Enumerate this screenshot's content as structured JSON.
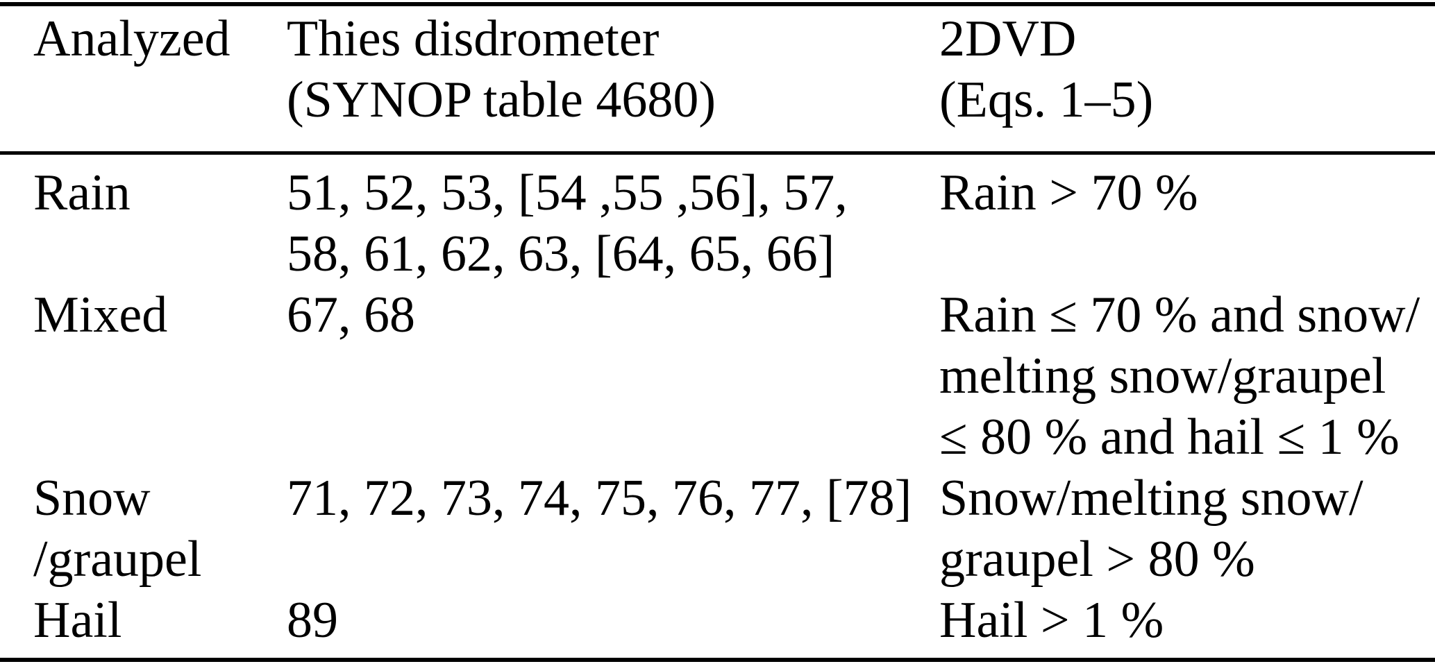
{
  "page": {
    "background": "#ffffff",
    "text_color": "#000000",
    "rule_color": "#000000"
  },
  "table": {
    "header": {
      "analyzed": {
        "lines": [
          "Analyzed"
        ]
      },
      "thies": {
        "lines": [
          "Thies disdrometer",
          "(SYNOP table 4680)"
        ]
      },
      "dvd": {
        "lines": [
          "2DVD",
          "(Eqs. 1–5)"
        ]
      }
    },
    "rows": [
      {
        "label": [
          "Rain"
        ],
        "thies": [
          "51, 52, 53, [54 ,55 ,56], 57,",
          "58, 61, 62, 63, [64, 65, 66]"
        ],
        "dvd": [
          "Rain > 70 %"
        ]
      },
      {
        "label": [
          "Mixed"
        ],
        "thies": [
          "67, 68"
        ],
        "dvd": [
          "Rain ≤ 70 % and snow/",
          "melting snow/graupel",
          "≤ 80 % and hail ≤ 1 %"
        ]
      },
      {
        "label": [
          "Snow",
          "/graupel"
        ],
        "thies": [
          "71, 72, 73, 74, 75, 76, 77, [78]"
        ],
        "dvd": [
          "Snow/melting snow/",
          "graupel > 80 %"
        ]
      },
      {
        "label": [
          "Hail"
        ],
        "thies": [
          "89"
        ],
        "dvd": [
          "Hail > 1 %"
        ]
      }
    ]
  }
}
